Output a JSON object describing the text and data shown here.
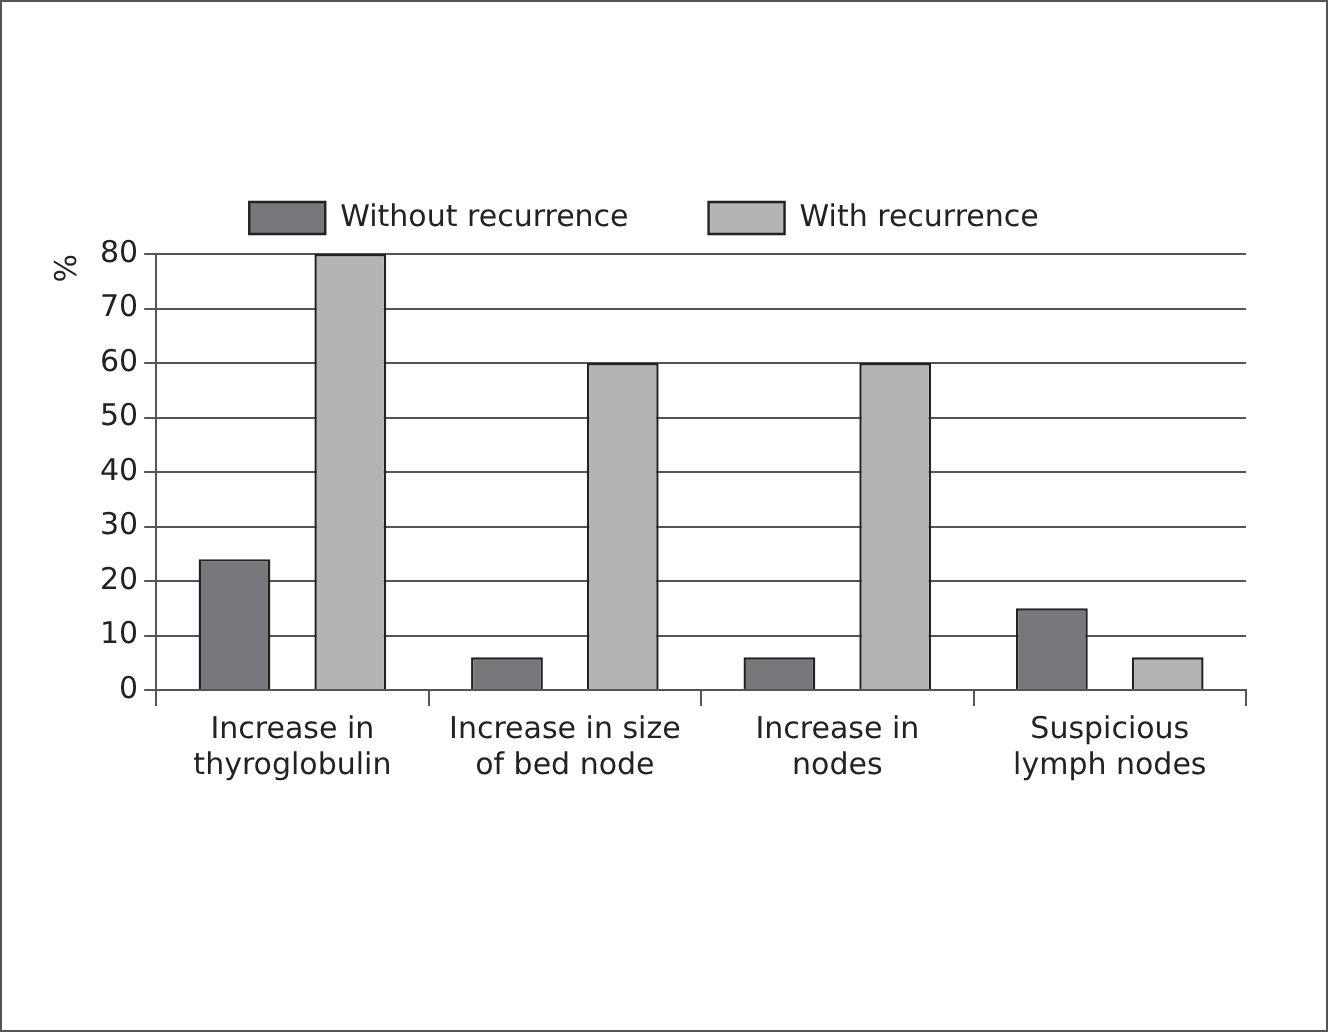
{
  "chart_data": {
    "type": "bar",
    "ylabel": "%",
    "categories": [
      "Increase in thyroglobulin",
      "Increase in size of bed node",
      "Increase in nodes",
      "Suspicious lymph nodes"
    ],
    "series": [
      {
        "name": "Without recurrence",
        "color": "#77787b",
        "values": [
          24,
          6,
          6,
          15
        ]
      },
      {
        "name": "With recurrence",
        "color": "#b3b4b6",
        "values": [
          80,
          60,
          60,
          6
        ]
      }
    ],
    "ylim": [
      0,
      80
    ],
    "yticks": [
      0,
      10,
      20,
      30,
      40,
      50,
      60,
      70,
      80
    ],
    "grid": "y",
    "legend": "top"
  }
}
